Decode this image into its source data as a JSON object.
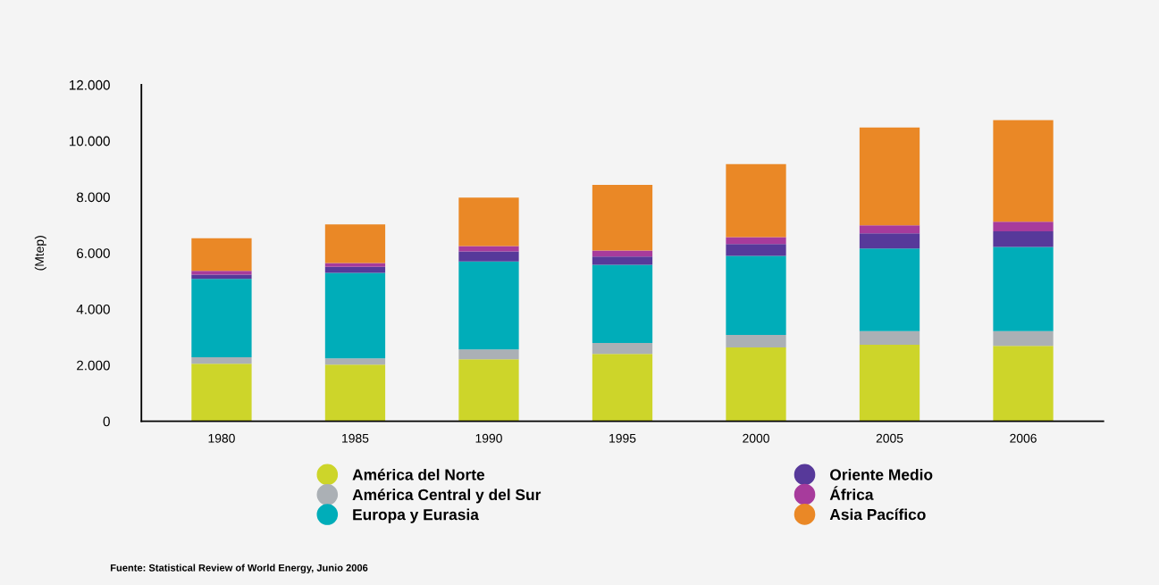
{
  "chart_data": {
    "type": "bar",
    "stacked": true,
    "ylabel": "(Mtep)",
    "categories": [
      "1980",
      "1985",
      "1990",
      "1995",
      "2000",
      "2005",
      "2006"
    ],
    "series": [
      {
        "name": "América del Norte",
        "color": "#cdd52a",
        "values": [
          2050,
          2020,
          2210,
          2400,
          2630,
          2730,
          2690
        ]
      },
      {
        "name": "América Central y del Sur",
        "color": "#abb0b5",
        "values": [
          230,
          220,
          350,
          390,
          450,
          480,
          520
        ]
      },
      {
        "name": "Europa y Eurasia",
        "color": "#00adb9",
        "values": [
          2800,
          3050,
          3140,
          2790,
          2820,
          2950,
          3010
        ]
      },
      {
        "name": "Oriente Medio",
        "color": "#57399a",
        "values": [
          150,
          220,
          360,
          290,
          420,
          540,
          550
        ]
      },
      {
        "name": "África",
        "color": "#a73b9c",
        "values": [
          130,
          130,
          190,
          220,
          250,
          290,
          350
        ]
      },
      {
        "name": "Asia Pacífico",
        "color": "#ea8826",
        "values": [
          1170,
          1380,
          1730,
          2340,
          2600,
          3490,
          3620
        ]
      }
    ],
    "ylim": [
      0,
      12000
    ],
    "yticks": [
      {
        "value": 0,
        "label": "0"
      },
      {
        "value": 2000,
        "label": "2.000"
      },
      {
        "value": 4000,
        "label": "4.000"
      },
      {
        "value": 6000,
        "label": "6.000"
      },
      {
        "value": 8000,
        "label": "8.000"
      },
      {
        "value": 10000,
        "label": "10.000"
      },
      {
        "value": 12000,
        "label": "12.000"
      }
    ],
    "grid": false,
    "legend": "bottom",
    "marker": "circle",
    "annotations": [
      "Fuente: Statistical Review of World Energy, Junio 2006"
    ]
  }
}
